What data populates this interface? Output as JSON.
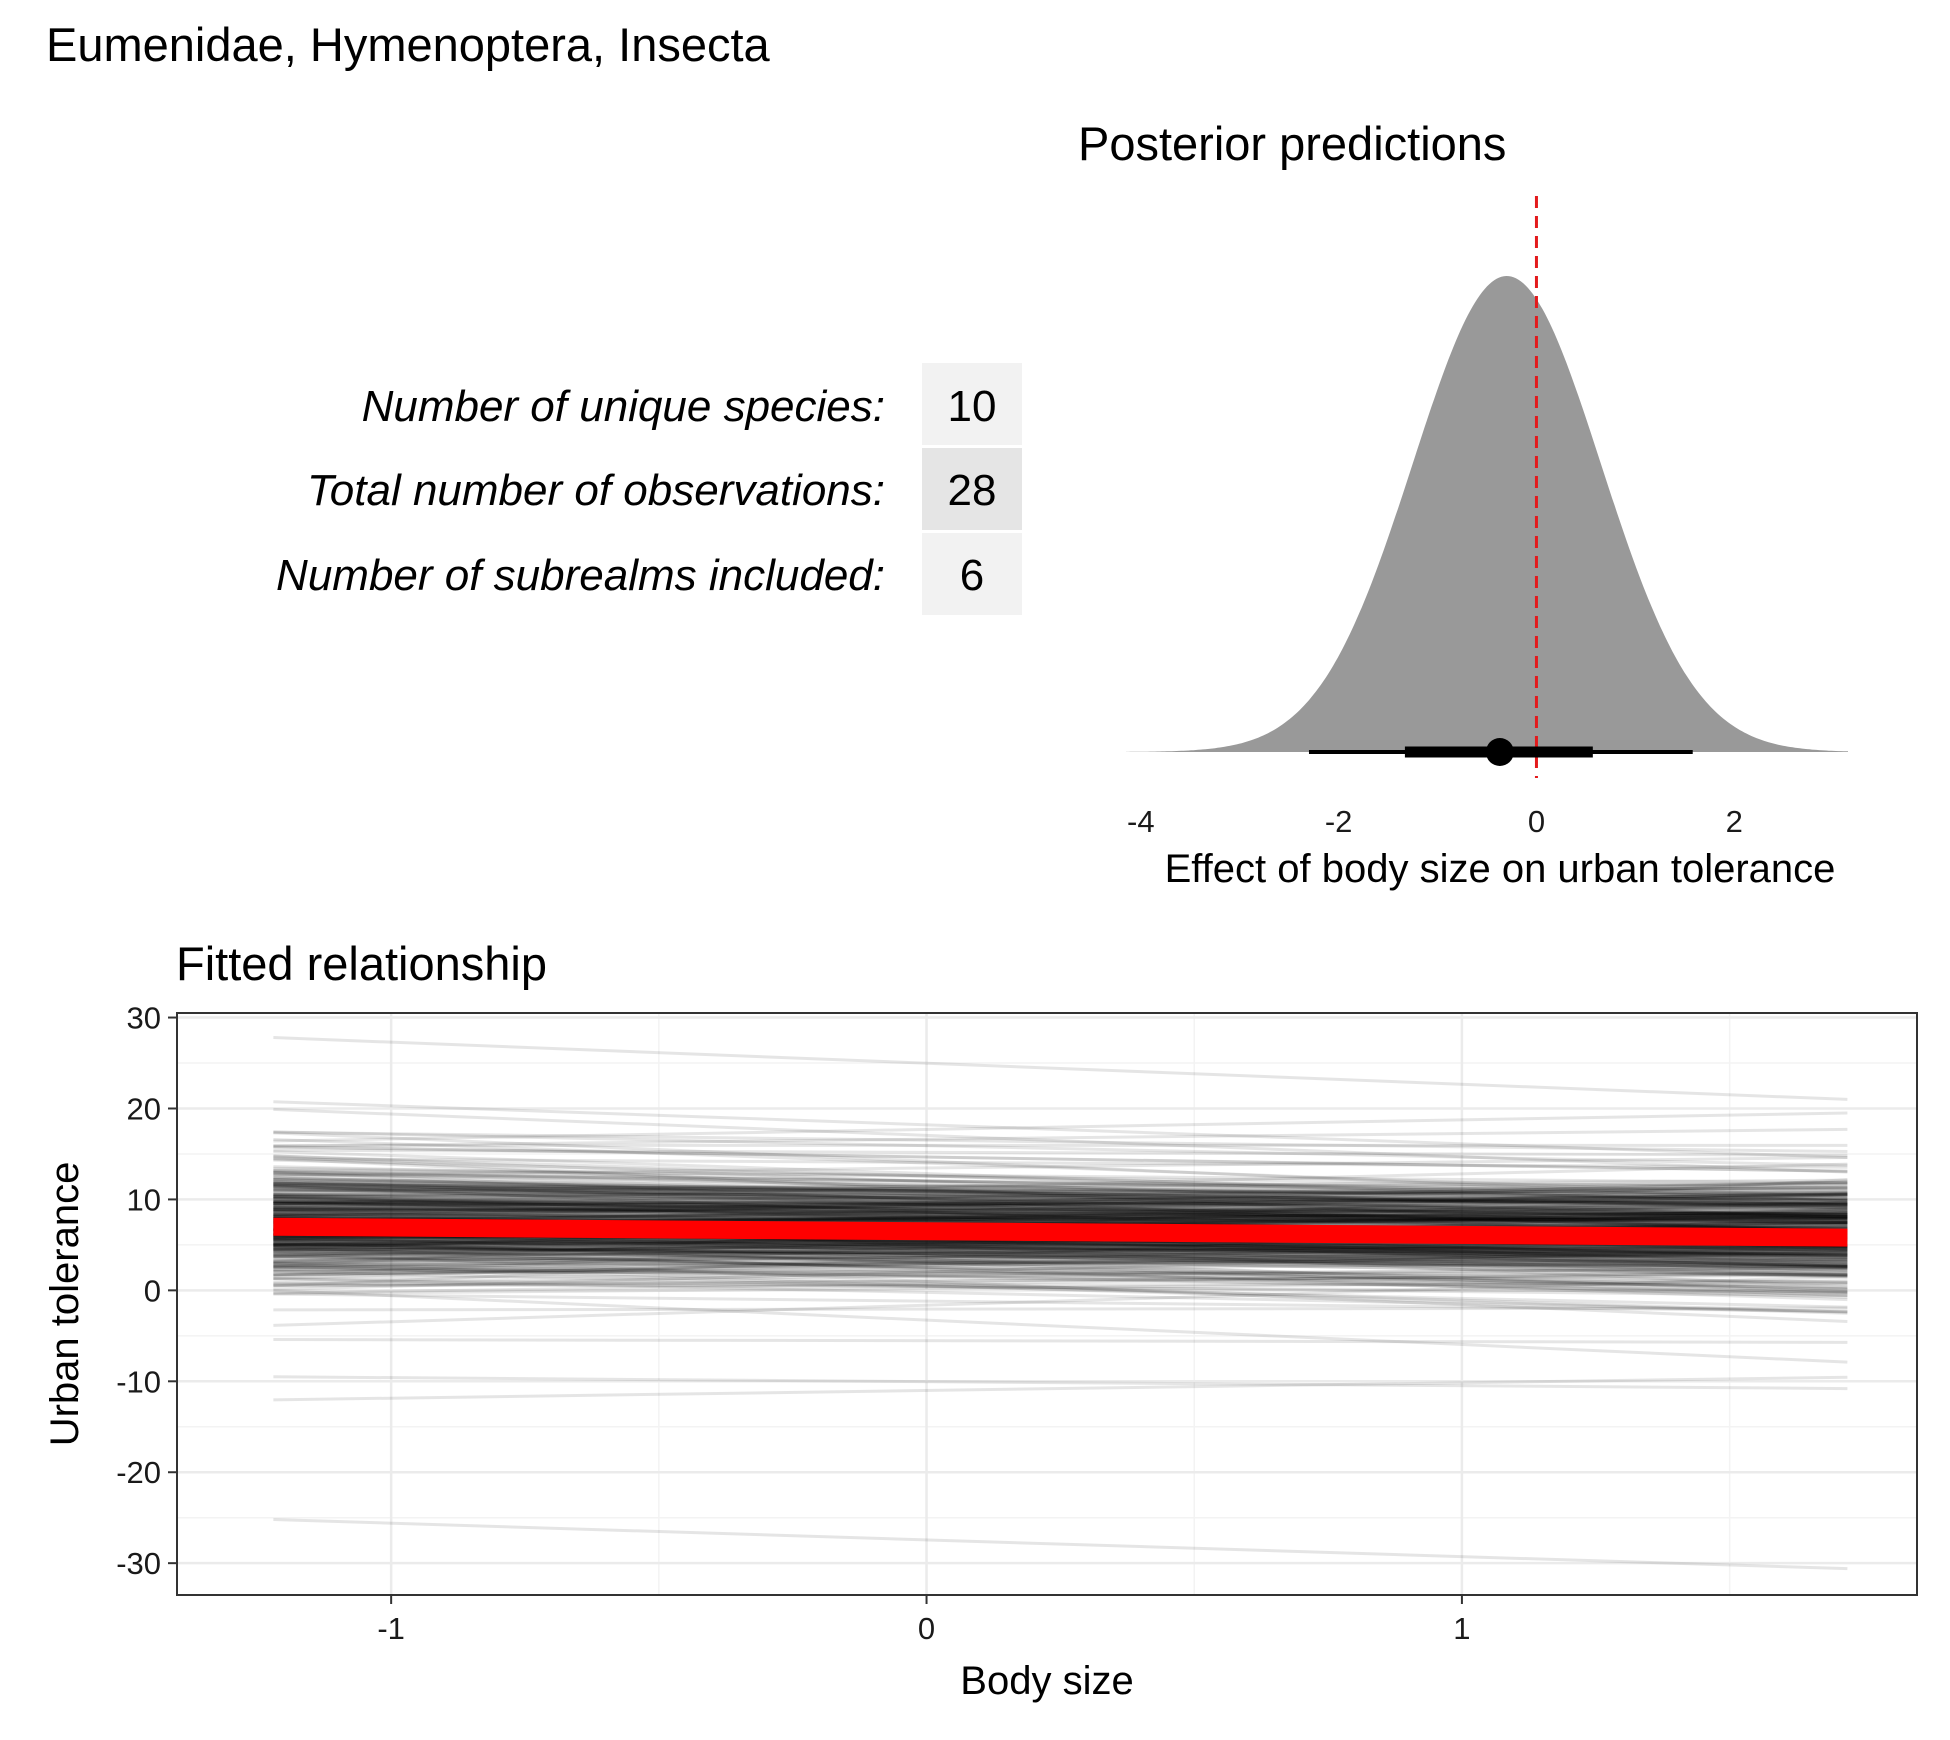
{
  "title": "Eumenidae, Hymenoptera, Insecta",
  "stats": [
    {
      "label": "Number of unique species:",
      "value": "10"
    },
    {
      "label": "Total number of observations:",
      "value": "28"
    },
    {
      "label": "Number of subrealms included:",
      "value": "6"
    }
  ],
  "colors": {
    "density_fill": "#999999",
    "reference_line": "#e31a1c",
    "mean_fit": "#ff0000",
    "draws": "#000000",
    "grid": "#ebebeb",
    "stat_cell_light": "#f2f2f2",
    "stat_cell_dark": "#e5e5e5"
  },
  "chart_data": [
    {
      "type": "area",
      "title": "Posterior predictions",
      "xlabel": "Effect of body size on urban tolerance",
      "ylabel": "",
      "xlim": [
        -4.15,
        3.15
      ],
      "xticks": [
        "-4",
        "-2",
        "0",
        "2"
      ],
      "xtick_values": [
        -4,
        -2,
        0,
        2
      ],
      "reference_line_x": 0,
      "density": {
        "mean": -0.3,
        "sd": 0.95,
        "range": [
          -4.15,
          3.15
        ]
      },
      "point_estimate": -0.37,
      "interval_inner": [
        -1.33,
        0.57
      ],
      "interval_outer": [
        -2.3,
        1.58
      ],
      "grid": false
    },
    {
      "type": "line",
      "title": "Fitted relationship",
      "xlabel": "Body size",
      "ylabel": "Urban tolerance",
      "xlim": [
        -1.4,
        1.85
      ],
      "ylim": [
        -33.5,
        30.5
      ],
      "xticks": [
        "-1",
        "0",
        "1"
      ],
      "xtick_values": [
        -1,
        0,
        1
      ],
      "yticks": [
        "30",
        "20",
        "10",
        "0",
        "-10",
        "-20",
        "-30"
      ],
      "ytick_values": [
        30,
        20,
        10,
        0,
        -10,
        -20,
        -30
      ],
      "x_range": [
        -1.22,
        1.72
      ],
      "grid": true,
      "mean_fit": {
        "x": [
          -1.22,
          1.72
        ],
        "y": [
          7.0,
          5.8
        ]
      },
      "posterior_draws": {
        "count": 420,
        "intercept_center": 6.5,
        "intercept_sd": 3.0,
        "slope_center": -0.37,
        "slope_sd": 0.95,
        "notable_lines": [
          {
            "x": [
              -1.22,
              1.72
            ],
            "y": [
              27.8,
              21.0
            ]
          },
          {
            "x": [
              -1.22,
              1.72
            ],
            "y": [
              19.9,
              13.0
            ]
          },
          {
            "x": [
              -1.22,
              1.72
            ],
            "y": [
              -9.5,
              -10.8
            ]
          },
          {
            "x": [
              -1.22,
              1.72
            ],
            "y": [
              -25.2,
              -30.6
            ]
          }
        ]
      }
    }
  ]
}
